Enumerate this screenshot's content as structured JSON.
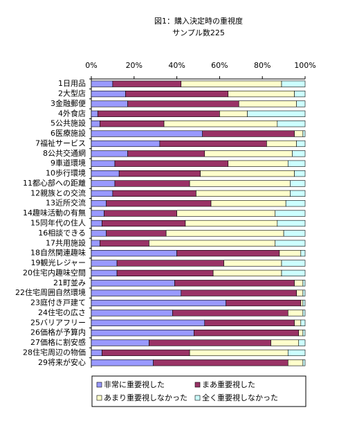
{
  "chart_data": {
    "type": "stacked_bar_horizontal_percent",
    "title": "図1：購入決定時の重視度",
    "subtitle": "サンプル数225",
    "categories": [
      "1日用品",
      "2大型店",
      "3金融郵便",
      "4外食店",
      "5公共施設",
      "6医療施設",
      "7福祉サービス",
      "8公共交通網",
      "9車道環境",
      "10歩行環境",
      "11都心部への距離",
      "12親族との交流",
      "13近所交流",
      "14趣味活動の有無",
      "15同年代の住人",
      "16相談できる",
      "17共用施設",
      "18自然関連趣味",
      "19観光レジャー",
      "20住宅内趣味空間",
      "21町並み",
      "22住宅周囲自然環境",
      "23庭付き戸建て",
      "24住宅の広さ",
      "25バリアフリー",
      "26価格が予算内",
      "27価格に割安感",
      "28住宅周辺の物価",
      "29将来が安心"
    ],
    "series": [
      {
        "name": "非常に重要視した",
        "color": "#9999ff",
        "values": [
          10,
          16,
          17,
          3,
          4,
          52,
          32,
          17,
          11,
          13,
          11,
          10,
          7,
          6,
          5,
          7,
          4,
          40,
          12,
          12,
          39,
          42,
          63,
          38,
          53,
          48,
          27,
          5,
          29
        ]
      },
      {
        "name": "まあ重要視した",
        "color": "#993366",
        "values": [
          32,
          48,
          52,
          57,
          30,
          43,
          50,
          36,
          53,
          38,
          35,
          39,
          49,
          34,
          39,
          28,
          23,
          48,
          50,
          45,
          56,
          54,
          35,
          54,
          42,
          49,
          57,
          41,
          63
        ]
      },
      {
        "name": "あまり重要視しなかった",
        "color": "#ffffcc",
        "values": [
          47,
          31,
          27,
          13,
          53,
          4,
          14,
          41,
          28,
          44,
          47,
          44,
          35,
          46,
          43,
          55,
          59,
          10,
          27,
          32,
          4,
          3,
          1,
          7,
          3,
          2,
          13,
          46,
          7
        ]
      },
      {
        "name": "全く重要視しなかった",
        "color": "#ccffff",
        "values": [
          11,
          5,
          4,
          27,
          13,
          1,
          4,
          6,
          8,
          5,
          7,
          7,
          9,
          14,
          13,
          10,
          14,
          2,
          11,
          11,
          1,
          1,
          1,
          1,
          2,
          1,
          3,
          8,
          1
        ]
      }
    ],
    "xlim": [
      0,
      100
    ],
    "xticks": [
      {
        "value": 0,
        "label": "0%"
      },
      {
        "value": 20,
        "label": "20%"
      },
      {
        "value": 40,
        "label": "40%"
      },
      {
        "value": 60,
        "label": "60%"
      },
      {
        "value": 80,
        "label": "80%"
      },
      {
        "value": 100,
        "label": "100%"
      }
    ]
  }
}
